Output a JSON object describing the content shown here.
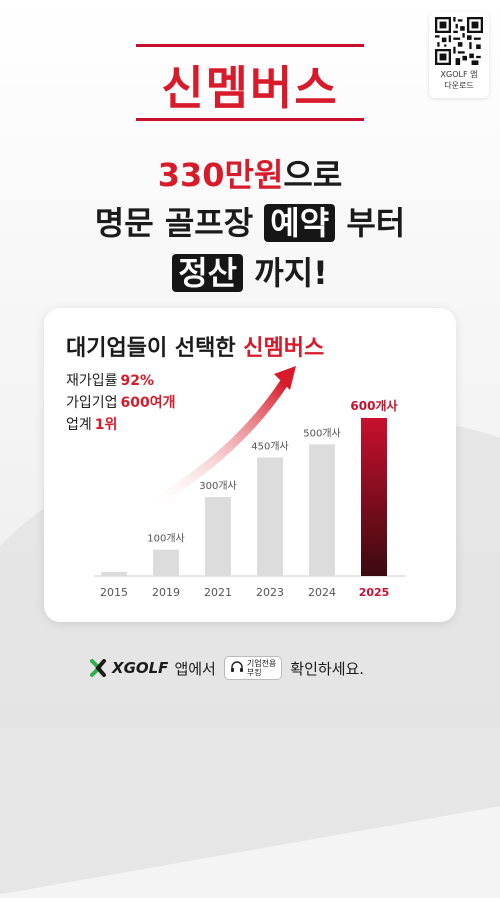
{
  "qr": {
    "label_line1": "XGOLF 앱",
    "label_line2": "다운로드"
  },
  "brand": "신멤버스",
  "headline": {
    "line1_price": "330만원",
    "line1_rest": "으로",
    "line2_prefix": "명문 골프장 ",
    "line2_tag": "예약",
    "line2_suffix": " 부터",
    "line3_tag": "정산",
    "line3_suffix": " 까지!"
  },
  "card": {
    "title_prefix": "대기업들이 선택한 ",
    "title_brand": "신멤버스",
    "stats": [
      {
        "label": "재가입률",
        "value": "92%"
      },
      {
        "label": "가입기업",
        "value": "600여개"
      },
      {
        "label": "업계",
        "value": "1위"
      }
    ]
  },
  "chart_data": {
    "type": "bar",
    "categories": [
      "2015",
      "2019",
      "2021",
      "2023",
      "2024",
      "2025"
    ],
    "values": [
      10,
      100,
      300,
      450,
      500,
      600
    ],
    "data_labels": [
      "",
      "100개사",
      "300개사",
      "450개사",
      "500개사",
      "600개사"
    ],
    "highlight_index": 5,
    "title": "대기업들이 선택한 신멤버스",
    "ylim": [
      0,
      600
    ],
    "grid": false,
    "colors": {
      "bar": "#dcdcdc",
      "highlight_top": "#c8102e",
      "highlight_bottom": "#3b0a10",
      "arrow": "#d71b2a"
    }
  },
  "footer": {
    "logo_text": "XGOLF",
    "text1": "앱에서",
    "badge_line1": "기업전용",
    "badge_line2": "부킹",
    "text2": "확인하세요."
  },
  "colors": {
    "brand_red": "#d71b2a",
    "dark": "#161616"
  }
}
